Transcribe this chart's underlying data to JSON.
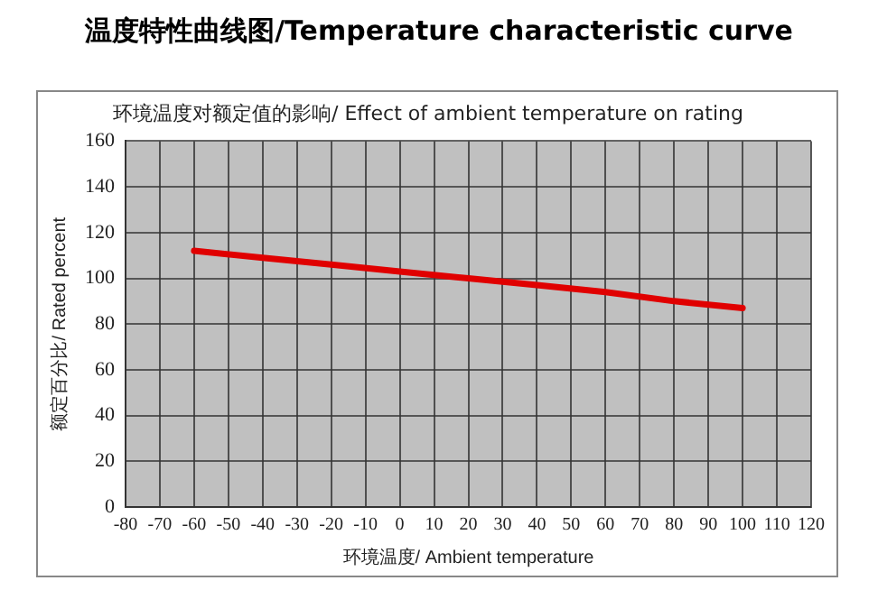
{
  "chart_data": {
    "type": "line",
    "title": "温度特性曲线图/Temperature characteristic curve",
    "subtitle": "环境温度对额定值的影响/ Effect of ambient temperature on rating",
    "xlabel": "环境温度/ Ambient temperature",
    "ylabel": "额定百分比/ Rated percent",
    "x": [
      -60,
      -40,
      -20,
      0,
      20,
      40,
      60,
      80,
      100
    ],
    "series": [
      {
        "color": "#e00000",
        "values": [
          112,
          109,
          106,
          103,
          100,
          97,
          94,
          90,
          87
        ]
      }
    ],
    "xlim": [
      -80,
      120
    ],
    "xticks": [
      -80,
      -70,
      -60,
      -50,
      -40,
      -30,
      -20,
      -10,
      0,
      10,
      20,
      30,
      40,
      50,
      60,
      70,
      80,
      90,
      100,
      110,
      120
    ],
    "ylim": [
      0,
      160
    ],
    "yticks": [
      0,
      20,
      40,
      60,
      80,
      100,
      120,
      140,
      160
    ],
    "grid": true,
    "legend": false,
    "marker": "none",
    "line_style": "solid"
  }
}
